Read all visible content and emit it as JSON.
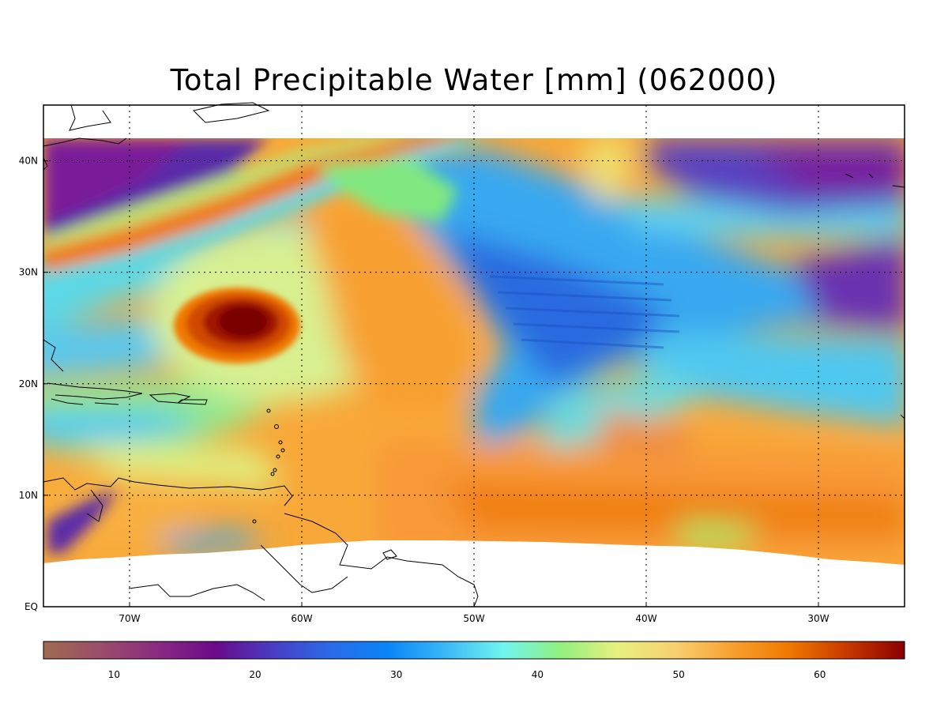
{
  "title": "Total Precipitable Water [mm]  (062000)",
  "map": {
    "lon_range": [
      -75,
      -25
    ],
    "lat_range": [
      0,
      45
    ],
    "data_lat_max": 42,
    "lat_ticks": [
      {
        "lat": 40,
        "label": "40N"
      },
      {
        "lat": 30,
        "label": "30N"
      },
      {
        "lat": 20,
        "label": "20N"
      },
      {
        "lat": 10,
        "label": "10N"
      },
      {
        "lat": 0,
        "label": "EQ"
      }
    ],
    "lon_ticks": [
      {
        "lon": -70,
        "label": "70W"
      },
      {
        "lon": -60,
        "label": "60W"
      },
      {
        "lon": -50,
        "label": "50W"
      },
      {
        "lon": -40,
        "label": "40W"
      },
      {
        "lon": -30,
        "label": "30W"
      }
    ],
    "hurricane_center": {
      "lon": -63,
      "lat": 25.5
    }
  },
  "colorbar": {
    "min": 5,
    "max": 66,
    "ticks": [
      10,
      20,
      30,
      40,
      50,
      60
    ],
    "colors": [
      "#a06a50",
      "#9a4d6a",
      "#8a2a82",
      "#6a0a8a",
      "#4a3cc4",
      "#2a6ae8",
      "#0a86f8",
      "#3ab8f8",
      "#70f4f0",
      "#90f080",
      "#e8f080",
      "#f8d070",
      "#f8a030",
      "#f07800",
      "#c83800",
      "#8a0000"
    ]
  }
}
